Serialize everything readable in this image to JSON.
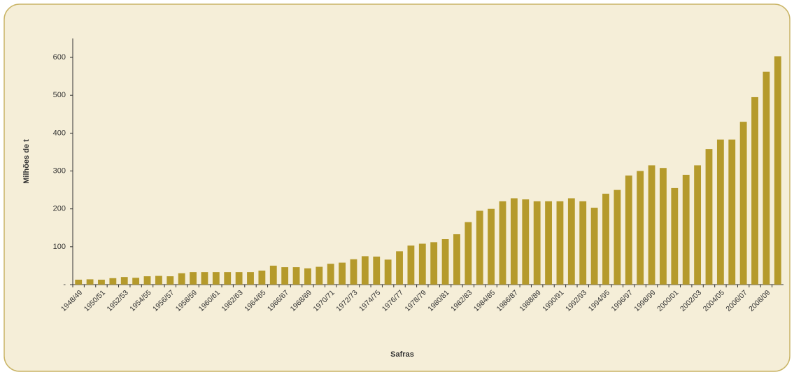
{
  "chart_data": {
    "type": "bar",
    "x_label": "Safras",
    "y_label": "Milhões de t",
    "color": "#b59a2b",
    "categories": [
      "1948/49",
      null,
      "1950/51",
      null,
      "1952/53",
      null,
      "1954/55",
      null,
      "1956/57",
      null,
      "1958/59",
      null,
      "1960/61",
      null,
      "1962/63",
      null,
      "1964/65",
      null,
      "1966/67",
      null,
      "1968/69",
      null,
      "1970/71",
      null,
      "1972/73",
      null,
      "1974/75",
      null,
      "1976/77",
      null,
      "1978/79",
      null,
      "1980/81",
      null,
      "1982/83",
      null,
      "1984/85",
      null,
      "1986/87",
      null,
      "1988/89",
      null,
      "1990/91",
      null,
      "1992/93",
      null,
      "1994/95",
      null,
      "1996/97",
      null,
      "1998/99",
      null,
      "2000/01",
      null,
      "2002/03",
      null,
      "2004/05",
      null,
      "2006/07",
      null,
      "2008/09",
      null
    ],
    "values": [
      13,
      14,
      13,
      17,
      20,
      18,
      22,
      23,
      22,
      30,
      33,
      33,
      33,
      33,
      33,
      33,
      37,
      50,
      46,
      46,
      43,
      47,
      55,
      58,
      67,
      75,
      74,
      66,
      88,
      103,
      108,
      112,
      120,
      133,
      165,
      195,
      200,
      220,
      228,
      225,
      220,
      220,
      220,
      228,
      220,
      203,
      240,
      250,
      288,
      300,
      315,
      308,
      255,
      290,
      315,
      358,
      383,
      383,
      430,
      495,
      562,
      603
    ],
    "ylim": [
      0,
      650
    ],
    "yticks": [
      {
        "value": 0,
        "label": "-"
      },
      100,
      200,
      300,
      400,
      500,
      600
    ]
  }
}
